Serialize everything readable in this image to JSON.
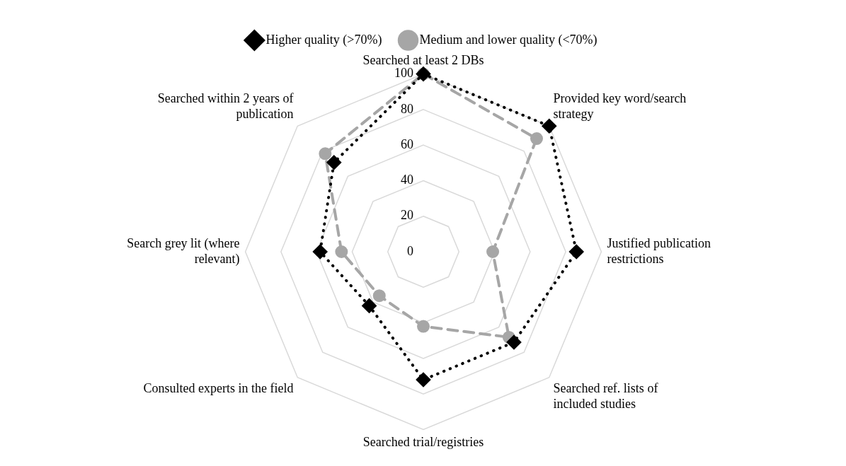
{
  "chart_data": {
    "type": "radar",
    "categories": [
      "Searched at least 2 DBs",
      "Provided key word/search strategy",
      "Justified publication restrictions",
      "Searched ref. lists of included studies",
      "Searched trial/registries",
      "Consulted experts in the field",
      "Search grey lit (where relevant)",
      "Searched within 2 years of publication"
    ],
    "series": [
      {
        "name": "Higher quality (>70%)",
        "color": "#000000",
        "marker": "diamond",
        "line_style": "dotted",
        "values": [
          100,
          100,
          86,
          72,
          72,
          43,
          58,
          71
        ]
      },
      {
        "name": "Medium and lower quality (<70%)",
        "color": "#a6a6a6",
        "marker": "circle",
        "line_style": "dashed",
        "values": [
          100,
          90,
          39,
          68,
          42,
          35,
          46,
          78
        ]
      }
    ],
    "ylim": [
      0,
      100
    ],
    "yticks": [
      0,
      20,
      40,
      60,
      80,
      100
    ],
    "grid": true,
    "legend": "top"
  }
}
